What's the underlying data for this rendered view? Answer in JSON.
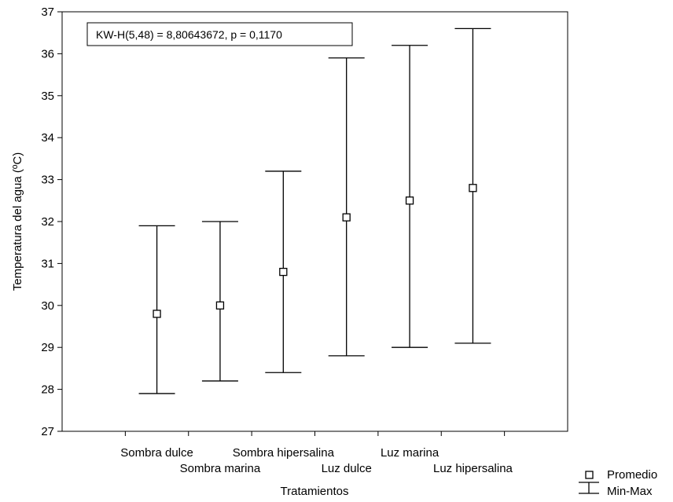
{
  "chart_data": {
    "type": "errorbar",
    "title": "",
    "xlabel": "Tratamientos",
    "ylabel": "Temperatura del agua (ºC)",
    "ylim": [
      27,
      37
    ],
    "yticks": [
      27,
      28,
      29,
      30,
      31,
      32,
      33,
      34,
      35,
      36,
      37
    ],
    "grid": false,
    "categories": [
      "Sombra dulce",
      "Sombra marina",
      "Sombra hipersalina",
      "Luz dulce",
      "Luz marina",
      "Luz hipersalina"
    ],
    "series": [
      {
        "name": "Promedio",
        "values": [
          29.8,
          30.0,
          30.8,
          32.1,
          32.5,
          32.8
        ]
      },
      {
        "name": "Min-Max",
        "min": [
          27.9,
          28.2,
          28.4,
          28.8,
          29.0,
          29.1
        ],
        "max": [
          31.9,
          32.0,
          33.2,
          35.9,
          36.2,
          36.6
        ]
      }
    ],
    "annotation": "KW-H(5,48) = 8,80643672, p = 0,1170",
    "legend": {
      "position": "bottom-right",
      "items": [
        "Promedio",
        "Min-Max"
      ]
    }
  }
}
